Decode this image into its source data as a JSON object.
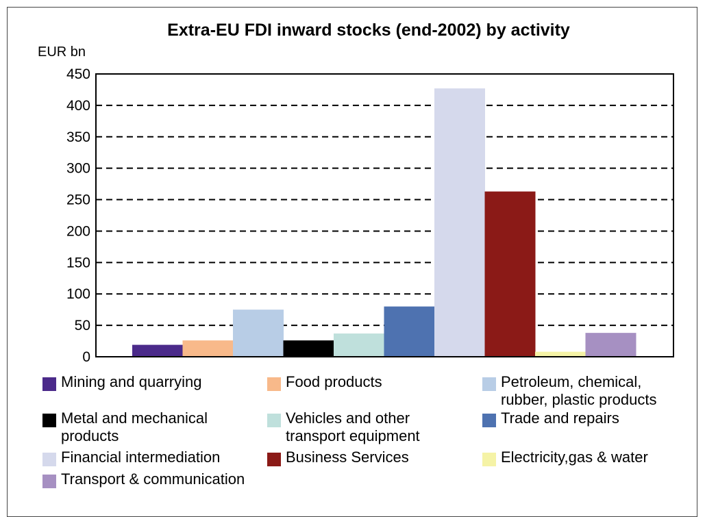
{
  "chart_data": {
    "type": "bar",
    "title": "Extra-EU FDI inward stocks (end-2002) by activity",
    "ylabel": "EUR bn",
    "ylim": [
      0,
      450
    ],
    "yticks": [
      0,
      50,
      100,
      150,
      200,
      250,
      300,
      350,
      400,
      450
    ],
    "grid": "horizontal dashed",
    "legend_position": "bottom",
    "categories": [
      "Mining and quarrying",
      "Food products",
      "Petroleum, chemical,\nrubber, plastic products",
      "Metal and mechanical\nproducts",
      "Vehicles and other\ntransport equipment",
      "Trade and repairs",
      "Financial intermediation",
      "Business Services",
      "Electricity,gas & water",
      "Transport & communication"
    ],
    "values": [
      19,
      26,
      75,
      26,
      37,
      80,
      427,
      263,
      8,
      38
    ],
    "colors": [
      "#4b2a8a",
      "#f8b98a",
      "#b8cde6",
      "#000000",
      "#bfe0dc",
      "#4e72b0",
      "#d5d9ec",
      "#8b1a17",
      "#f5f3a6",
      "#a690c2"
    ]
  }
}
